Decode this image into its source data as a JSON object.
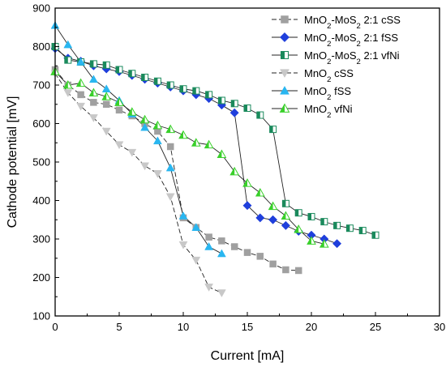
{
  "chart_data": {
    "type": "line",
    "title": "",
    "xlabel": "Current [mA]",
    "ylabel": "Cathode potential [mV]",
    "xlim": [
      0,
      30
    ],
    "ylim": [
      100,
      900
    ],
    "xticks": [
      0,
      5,
      10,
      15,
      20,
      25,
      30
    ],
    "yticks": [
      100,
      200,
      300,
      400,
      500,
      600,
      700,
      800,
      900
    ],
    "grid": false,
    "legend_position": "top-right",
    "series": [
      {
        "name": "MnO2-MoS2 2:1 cSS",
        "label_parts": [
          {
            "text": "MnO",
            "sub": false
          },
          {
            "text": "2",
            "sub": true
          },
          {
            "text": "-MoS",
            "sub": false
          },
          {
            "text": "2",
            "sub": true
          },
          {
            "text": " 2:1 cSS",
            "sub": false
          }
        ],
        "marker": "square",
        "fill": "#a0a0a0",
        "stroke": "#a0a0a0",
        "line_style": "dash",
        "x": [
          0,
          1,
          2,
          3,
          4,
          5,
          6,
          7,
          8,
          9,
          10,
          11,
          12,
          13,
          14,
          15,
          16,
          17,
          18,
          19
        ],
        "y": [
          740,
          700,
          675,
          655,
          650,
          635,
          620,
          600,
          580,
          540,
          355,
          330,
          305,
          295,
          280,
          265,
          255,
          235,
          220,
          218
        ]
      },
      {
        "name": "MnO2-MoS2 2:1 fSS",
        "label_parts": [
          {
            "text": "MnO",
            "sub": false
          },
          {
            "text": "2",
            "sub": true
          },
          {
            "text": "-MoS",
            "sub": false
          },
          {
            "text": "2",
            "sub": true
          },
          {
            "text": " 2:1 fSS",
            "sub": false
          }
        ],
        "marker": "diamond",
        "fill": "#1f3fdc",
        "stroke": "#1f3fdc",
        "line_style": "solid",
        "x": [
          0,
          1,
          2,
          3,
          4,
          5,
          6,
          7,
          8,
          9,
          10,
          11,
          12,
          13,
          14,
          15,
          16,
          17,
          18,
          19,
          20,
          21,
          22
        ],
        "y": [
          795,
          770,
          762,
          750,
          742,
          735,
          725,
          715,
          705,
          695,
          685,
          675,
          665,
          648,
          628,
          387,
          355,
          350,
          335,
          320,
          310,
          300,
          288
        ]
      },
      {
        "name": "MnO2-MoS2 2:1 vfNi",
        "label_parts": [
          {
            "text": "MnO",
            "sub": false
          },
          {
            "text": "2",
            "sub": true
          },
          {
            "text": "-MoS",
            "sub": false
          },
          {
            "text": "2",
            "sub": true
          },
          {
            "text": " 2:1 vfNi",
            "sub": false
          }
        ],
        "marker": "square-half",
        "fill": "#1a8a5c",
        "stroke": "#1a8a5c",
        "line_style": "solid",
        "x": [
          0,
          1,
          2,
          3,
          4,
          5,
          6,
          7,
          8,
          9,
          10,
          11,
          12,
          13,
          14,
          15,
          16,
          17,
          18,
          19,
          20,
          21,
          22,
          23,
          24,
          25
        ],
        "y": [
          800,
          765,
          760,
          755,
          752,
          740,
          730,
          720,
          710,
          700,
          690,
          685,
          675,
          660,
          652,
          640,
          622,
          585,
          392,
          368,
          358,
          345,
          335,
          328,
          322,
          310
        ]
      },
      {
        "name": "MnO2 cSS",
        "label_parts": [
          {
            "text": "MnO",
            "sub": false
          },
          {
            "text": "2",
            "sub": true
          },
          {
            "text": " cSS",
            "sub": false
          }
        ],
        "marker": "triangle-down",
        "fill": "#c8c8c8",
        "stroke": "#c8c8c8",
        "line_style": "dash",
        "x": [
          0,
          1,
          2,
          3,
          4,
          5,
          6,
          7,
          8,
          9,
          10,
          11,
          12,
          13
        ],
        "y": [
          730,
          680,
          645,
          615,
          580,
          545,
          525,
          490,
          470,
          410,
          285,
          245,
          175,
          160
        ]
      },
      {
        "name": "MnO2 fSS",
        "label_parts": [
          {
            "text": "MnO",
            "sub": false
          },
          {
            "text": "2",
            "sub": true
          },
          {
            "text": " fSS",
            "sub": false
          }
        ],
        "marker": "triangle-up",
        "fill": "#29b6f0",
        "stroke": "#29b6f0",
        "line_style": "solid",
        "x": [
          0,
          1,
          2,
          3,
          4,
          5,
          6,
          7,
          8,
          9,
          10,
          11,
          12,
          13
        ],
        "y": [
          855,
          805,
          760,
          715,
          690,
          660,
          625,
          590,
          555,
          485,
          360,
          330,
          280,
          262
        ]
      },
      {
        "name": "MnO2 vfNi",
        "label_parts": [
          {
            "text": "MnO",
            "sub": false
          },
          {
            "text": "2",
            "sub": true
          },
          {
            "text": " vfNi",
            "sub": false
          }
        ],
        "marker": "triangle-up-half",
        "fill": "#39d02a",
        "stroke": "#39d02a",
        "line_style": "solid",
        "x": [
          0,
          1,
          2,
          3,
          4,
          5,
          6,
          7,
          8,
          9,
          10,
          11,
          12,
          13,
          14,
          15,
          16,
          17,
          18,
          19,
          20,
          21
        ],
        "y": [
          735,
          700,
          705,
          680,
          670,
          655,
          630,
          610,
          595,
          585,
          570,
          550,
          545,
          520,
          475,
          445,
          420,
          385,
          360,
          325,
          295,
          287
        ]
      }
    ]
  }
}
